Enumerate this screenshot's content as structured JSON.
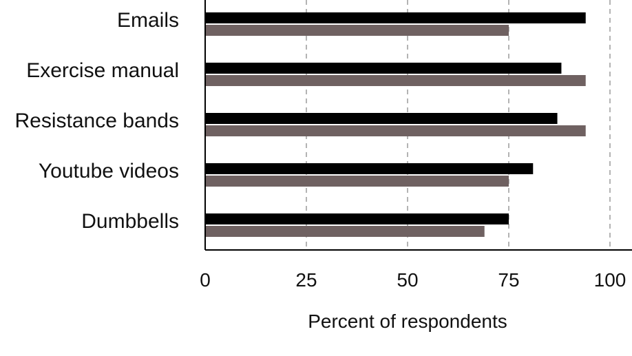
{
  "chart_data": {
    "type": "bar",
    "orientation": "horizontal",
    "categories": [
      "Emails",
      "Exercise manual",
      "Resistance bands",
      "Youtube videos",
      "Dumbbells"
    ],
    "series": [
      {
        "values": [
          94,
          88,
          87,
          81,
          75
        ],
        "color": "#000000"
      },
      {
        "values": [
          75,
          94,
          94,
          75,
          69
        ],
        "color": "#6f6161"
      }
    ],
    "xlabel": "Percent of respondents",
    "ylabel": "",
    "xlim": [
      0,
      100
    ],
    "x_ticks": [
      0,
      25,
      50,
      75,
      100
    ],
    "grid": "vertical-dashed",
    "legend": "none"
  }
}
